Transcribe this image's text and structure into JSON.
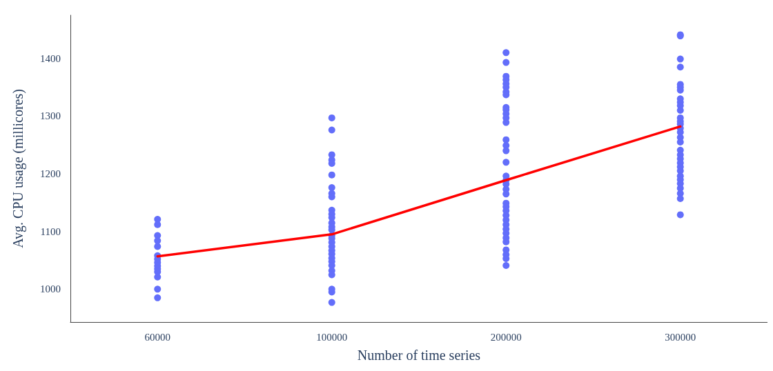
{
  "chart_data": {
    "type": "scatter",
    "xlabel": "Number of time series",
    "ylabel": "Avg. CPU usage (millicores)",
    "categories": [
      "60000",
      "100000",
      "200000",
      "300000"
    ],
    "ylim": [
      943,
      1475
    ],
    "yticks": [
      1000,
      1100,
      1200,
      1300,
      1400
    ],
    "grid": false,
    "series": [
      {
        "color": "#636efa",
        "marker": "circle",
        "x": [
          "60000",
          "60000",
          "60000",
          "60000",
          "60000",
          "60000",
          "60000",
          "60000",
          "60000",
          "60000",
          "60000",
          "60000",
          "60000",
          "60000",
          "100000",
          "100000",
          "100000",
          "100000",
          "100000",
          "100000",
          "100000",
          "100000",
          "100000",
          "100000",
          "100000",
          "100000",
          "100000",
          "100000",
          "100000",
          "100000",
          "100000",
          "100000",
          "100000",
          "100000",
          "100000",
          "100000",
          "100000",
          "100000",
          "100000",
          "100000",
          "100000",
          "100000",
          "100000",
          "200000",
          "200000",
          "200000",
          "200000",
          "200000",
          "200000",
          "200000",
          "200000",
          "200000",
          "200000",
          "200000",
          "200000",
          "200000",
          "200000",
          "200000",
          "200000",
          "200000",
          "200000",
          "200000",
          "200000",
          "200000",
          "200000",
          "200000",
          "200000",
          "200000",
          "200000",
          "200000",
          "200000",
          "200000",
          "200000",
          "200000",
          "200000",
          "200000",
          "200000",
          "200000",
          "200000",
          "300000",
          "300000",
          "300000",
          "300000",
          "300000",
          "300000",
          "300000",
          "300000",
          "300000",
          "300000",
          "300000",
          "300000",
          "300000",
          "300000",
          "300000",
          "300000",
          "300000",
          "300000",
          "300000",
          "300000",
          "300000",
          "300000",
          "300000",
          "300000",
          "300000",
          "300000",
          "300000",
          "300000",
          "300000",
          "300000",
          "300000"
        ],
        "values": [
          1121,
          1112,
          1093,
          1084,
          1074,
          1058,
          1052,
          1046,
          1040,
          1035,
          1030,
          1021,
          1000,
          985,
          1297,
          1276,
          1233,
          1224,
          1218,
          1198,
          1176,
          1166,
          1160,
          1137,
          1130,
          1124,
          1115,
          1108,
          1103,
          1093,
          1088,
          1081,
          1074,
          1067,
          1061,
          1054,
          1048,
          1041,
          1032,
          1025,
          1000,
          995,
          977,
          1410,
          1393,
          1369,
          1363,
          1356,
          1350,
          1342,
          1337,
          1315,
          1311,
          1304,
          1297,
          1289,
          1259,
          1249,
          1240,
          1220,
          1196,
          1189,
          1182,
          1173,
          1165,
          1149,
          1143,
          1136,
          1128,
          1120,
          1112,
          1104,
          1097,
          1089,
          1082,
          1068,
          1060,
          1053,
          1041,
          1441,
          1439,
          1399,
          1385,
          1355,
          1350,
          1345,
          1330,
          1324,
          1318,
          1310,
          1297,
          1291,
          1286,
          1279,
          1272,
          1263,
          1255,
          1241,
          1233,
          1226,
          1219,
          1212,
          1205,
          1196,
          1190,
          1183,
          1175,
          1166,
          1157,
          1129
        ]
      },
      {
        "type": "line",
        "color": "#ff0000",
        "marker": "none",
        "line_style": "solid",
        "values": [
          1057,
          1095,
          1189,
          1282
        ]
      }
    ]
  }
}
